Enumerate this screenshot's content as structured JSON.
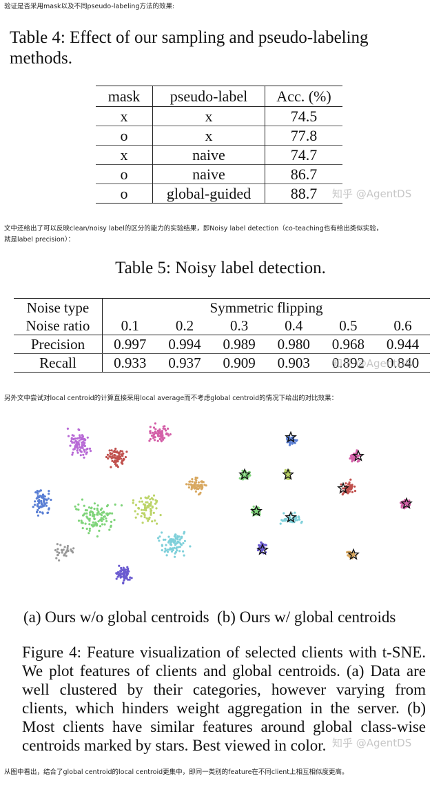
{
  "notes": {
    "intro": "验证是否采用mask以及不同pseudo-labeling方法的效果:",
    "t5_line1": "文中还给出了可以反映clean/noisy label的区分的能力的实验结果，即Noisy label detection（co-teaching也有给出类似实验，",
    "t5_line2": "就是label precision）：",
    "fig_intro": "另外文中尝试对local centroid的计算直接采用local average而不考虑global centroid的情况下给出的对比效果：",
    "conclusion": "从图中看出，结合了global centroid的local centroid更集中，即同一类别的feature在不同client上相互相似度更高。"
  },
  "table4": {
    "title": "Table 4: Effect of our sampling and pseudo-labeling methods.",
    "headers": [
      "mask",
      "pseudo-label",
      "Acc. (%)"
    ],
    "rows": [
      [
        "x",
        "x",
        "74.5"
      ],
      [
        "o",
        "x",
        "77.8"
      ],
      [
        "x",
        "naive",
        "74.7"
      ],
      [
        "o",
        "naive",
        "86.7"
      ],
      [
        "o",
        "global-guided",
        "88.7"
      ]
    ]
  },
  "table5": {
    "title": "Table 5: Noisy label detection.",
    "noise_type_label": "Noise type",
    "noise_type_value": "Symmetric flipping",
    "noise_ratio_label": "Noise ratio",
    "ratios": [
      "0.1",
      "0.2",
      "0.3",
      "0.4",
      "0.5",
      "0.6"
    ],
    "precision_label": "Precision",
    "precision": [
      "0.997",
      "0.994",
      "0.989",
      "0.980",
      "0.968",
      "0.944"
    ],
    "recall_label": "Recall",
    "recall": [
      "0.933",
      "0.937",
      "0.909",
      "0.903",
      "0.892",
      "0.840"
    ]
  },
  "figure": {
    "caption_a": "(a) Ours w/o global centroids",
    "caption_b": "(b) Ours w/ global centroids",
    "caption": "Figure 4: Feature visualization of selected clients with t-SNE. We plot features of clients and global centroids. (a) Data are well clustered by their categories, however varying from clients, which hinders weight aggregation in the server. (b) Most clients have similar features around global class-wise centroids marked by stars. Best viewed in color.",
    "colors": {
      "purple": "#b86ad6",
      "red": "#c0504d",
      "pink": "#d460a8",
      "tan": "#d8a860",
      "blue": "#5a7fd4",
      "green": "#7fd47a",
      "lime": "#bcd468",
      "cyan": "#7fd0da",
      "indigo": "#6a5ad0",
      "gray": "#999999"
    }
  },
  "watermark": "知乎 @AgentDS"
}
